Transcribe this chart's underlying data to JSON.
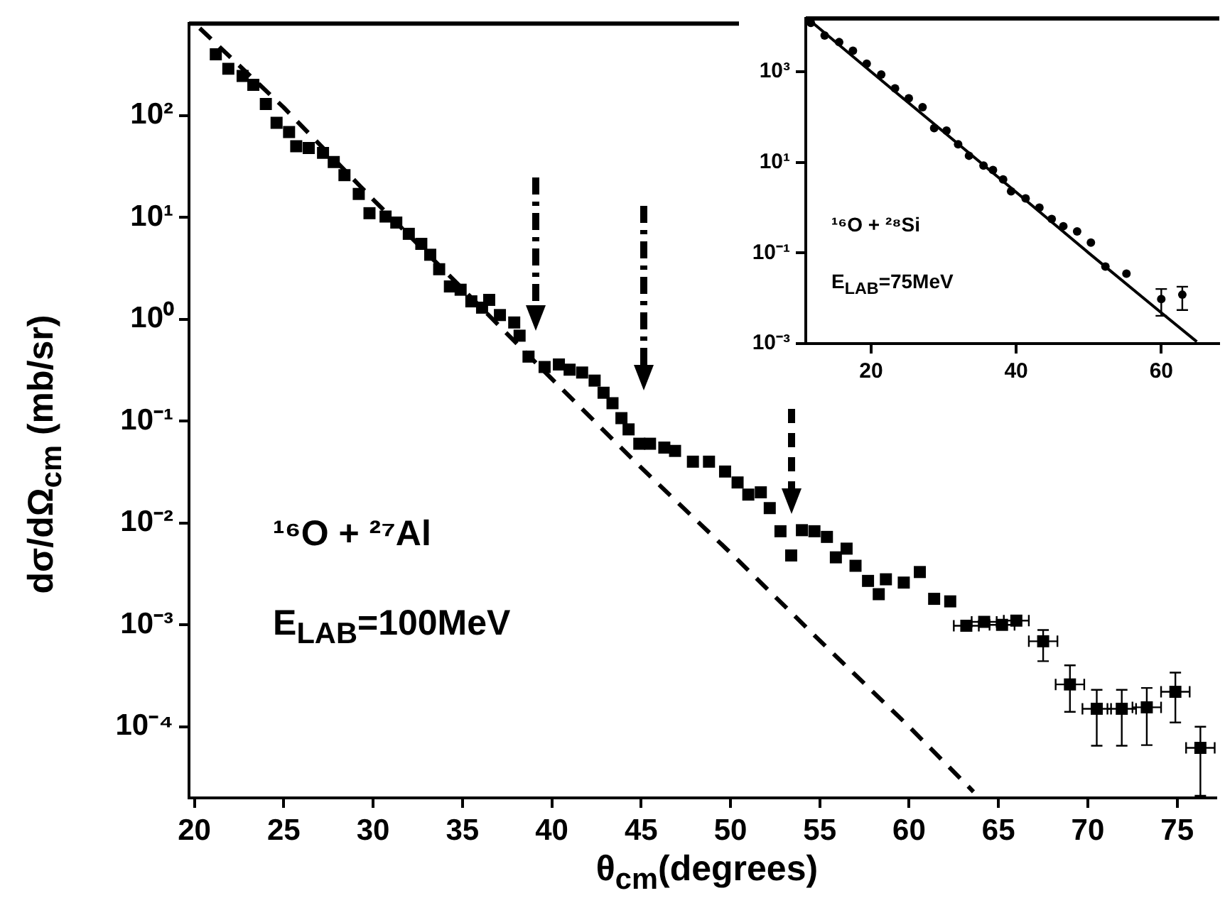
{
  "chart_data": [
    {
      "type": "scatter",
      "xlabel": "θ$_{cm}$(degrees)",
      "ylabel": "dσ/dΩ$_{cm}$ (mb/sr)",
      "log": "y",
      "grid": false,
      "annotations": [
        "¹⁶O + ²⁷Al",
        "E$_{LAB}$=100MeV"
      ],
      "xlim": [
        19.7,
        77.2
      ],
      "ylim": [
        2e-05,
        800
      ],
      "xticks": [
        20,
        25,
        30,
        35,
        40,
        45,
        50,
        55,
        60,
        65,
        70,
        75
      ],
      "yticks": [
        {
          "value": 0.0001,
          "label": "10⁻⁴"
        },
        {
          "value": 0.001,
          "label": "10⁻³"
        },
        {
          "value": 0.01,
          "label": "10⁻²"
        },
        {
          "value": 0.1,
          "label": "10⁻¹"
        },
        {
          "value": 1,
          "label": "10⁰"
        },
        {
          "value": 10,
          "label": "10¹"
        },
        {
          "value": 100,
          "label": "10²"
        }
      ],
      "series": [
        {
          "type": "scatter",
          "color": "#000000",
          "marker": "square",
          "x": [
            21.2,
            21.9,
            22.7,
            23.3,
            24.0,
            24.6,
            25.3,
            25.7,
            26.4,
            27.2,
            27.8,
            28.4,
            29.2,
            29.8,
            30.7,
            31.3,
            32.0,
            32.7,
            33.2,
            33.7,
            34.3,
            34.9,
            35.5,
            36.1,
            36.5,
            37.1,
            37.9,
            38.2,
            38.7,
            39.6,
            40.4,
            41.0,
            41.7,
            42.4,
            42.9,
            43.4,
            43.9,
            44.3,
            44.9,
            45.5,
            46.3,
            46.9,
            47.9,
            48.8,
            49.7,
            50.4,
            51.0,
            51.7,
            52.2,
            52.8,
            53.4,
            54.0,
            54.7,
            55.4,
            55.9,
            56.5,
            57.0,
            57.7,
            58.3,
            58.7,
            59.7,
            60.6,
            61.4,
            62.3,
            63.2,
            64.2,
            65.2,
            66.0,
            67.5,
            69.0,
            70.5,
            71.9,
            73.3,
            74.9,
            76.3
          ],
          "values": [
            400,
            288,
            245,
            200,
            130,
            85,
            69,
            50,
            48,
            43,
            35,
            26,
            17,
            11,
            10.2,
            8.9,
            6.9,
            5.5,
            4.3,
            3.1,
            2.1,
            1.95,
            1.5,
            1.3,
            1.55,
            1.1,
            0.93,
            0.69,
            0.43,
            0.34,
            0.36,
            0.32,
            0.3,
            0.25,
            0.19,
            0.15,
            0.107,
            0.083,
            0.06,
            0.06,
            0.055,
            0.051,
            0.04,
            0.04,
            0.032,
            0.025,
            0.019,
            0.02,
            0.014,
            0.0083,
            0.0048,
            0.0085,
            0.0083,
            0.0073,
            0.0046,
            0.0056,
            0.0038,
            0.0027,
            0.002,
            0.0028,
            0.0026,
            0.0033,
            0.0018,
            0.0017,
            0.00098,
            0.00107,
            0.001,
            0.0011,
            0.00069,
            0.00026,
            0.00015,
            0.00015,
            0.000155,
            0.00022,
            6.2e-05
          ],
          "errors": [
            null,
            null,
            null,
            null,
            null,
            null,
            null,
            null,
            null,
            null,
            null,
            null,
            null,
            null,
            null,
            null,
            null,
            null,
            null,
            null,
            null,
            null,
            null,
            null,
            null,
            null,
            null,
            null,
            null,
            null,
            null,
            null,
            null,
            null,
            null,
            null,
            null,
            null,
            null,
            null,
            null,
            null,
            null,
            null,
            null,
            null,
            null,
            null,
            null,
            null,
            null,
            null,
            null,
            null,
            null,
            null,
            null,
            null,
            null,
            null,
            null,
            null,
            null,
            null,
            null,
            null,
            null,
            null,
            [
              0.00044,
              0.00089
            ],
            [
              0.00014,
              0.0004
            ],
            [
              6.5e-05,
              0.00023
            ],
            [
              6.5e-05,
              0.00023
            ],
            [
              6.6e-05,
              0.00024
            ],
            [
              0.00011,
              0.00034
            ],
            [
              2.1e-05,
              0.0001
            ]
          ],
          "xerrors": [
            null,
            null,
            null,
            null,
            null,
            null,
            null,
            null,
            null,
            null,
            null,
            null,
            null,
            null,
            null,
            null,
            null,
            null,
            null,
            null,
            null,
            null,
            null,
            null,
            null,
            null,
            null,
            null,
            null,
            null,
            null,
            null,
            null,
            null,
            null,
            null,
            null,
            null,
            null,
            null,
            null,
            null,
            null,
            null,
            null,
            null,
            null,
            null,
            null,
            null,
            null,
            null,
            null,
            null,
            null,
            null,
            null,
            null,
            null,
            null,
            null,
            null,
            null,
            null,
            0.7,
            0.7,
            0.7,
            0.7,
            0.8,
            0.8,
            0.8,
            0.8,
            0.8,
            0.8,
            0.8
          ]
        },
        {
          "type": "line",
          "color": "#000000",
          "marker": "none",
          "line_style": "dashed",
          "x": [
            20.3,
            25,
            30,
            35,
            40,
            45,
            50,
            55,
            60,
            63.6
          ],
          "values": [
            720,
            120,
            15,
            2.0,
            0.26,
            0.035,
            0.0051,
            0.0007,
            0.0001,
            2.3e-05
          ]
        }
      ]
    },
    {
      "type": "scatter",
      "log": "y",
      "grid": false,
      "annotations": [
        "¹⁶O + ²⁸Si",
        "E$_{LAB}$=75MeV"
      ],
      "xlim": [
        11,
        68
      ],
      "ylim": [
        0.001,
        15000
      ],
      "xticks": [
        20,
        40,
        60
      ],
      "yticks": [
        {
          "value": 0.001,
          "label": "10⁻³"
        },
        {
          "value": 0.1,
          "label": "10⁻¹"
        },
        {
          "value": 10,
          "label": "10¹"
        },
        {
          "value": 1000,
          "label": "10³"
        }
      ],
      "series": [
        {
          "type": "scatter",
          "color": "#000000",
          "marker": "circle",
          "x": [
            11.7,
            13.6,
            15.6,
            17.5,
            19.4,
            21.4,
            23.3,
            25.2,
            27.1,
            28.7,
            30.4,
            32.0,
            33.5,
            35.5,
            36.8,
            38.2,
            39.3,
            41.3,
            43.2,
            44.9,
            46.5,
            48.4,
            50.3,
            52.3,
            55.2,
            60.0,
            62.9
          ],
          "values": [
            12000,
            6300,
            4500,
            2900,
            1500,
            870,
            430,
            260,
            165,
            57,
            50,
            25,
            14,
            8.5,
            6.8,
            4.2,
            2.3,
            1.6,
            1.0,
            0.56,
            0.39,
            0.3,
            0.17,
            0.05,
            0.035,
            0.0096,
            0.012
          ],
          "errors": [
            null,
            null,
            null,
            null,
            null,
            null,
            null,
            null,
            null,
            null,
            null,
            null,
            null,
            null,
            null,
            null,
            null,
            null,
            null,
            null,
            null,
            null,
            null,
            null,
            null,
            [
              0.0041,
              0.016
            ],
            [
              0.0055,
              0.018
            ]
          ]
        },
        {
          "type": "line",
          "color": "#000000",
          "marker": "none",
          "line_style": "solid",
          "x": [
            11.7,
            20,
            30,
            40,
            50,
            60,
            64.9
          ],
          "values": [
            13000,
            1000,
            47,
            2.2,
            0.1,
            0.0048,
            0.0011
          ]
        }
      ]
    }
  ]
}
